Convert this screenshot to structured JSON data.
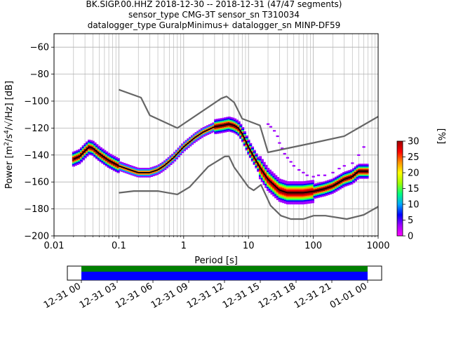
{
  "title_lines": [
    "BK.SIGP.00.HHZ   2018-12-30 -- 2018-12-31  (47/47 segments)",
    "sensor_type CMG-3T sensor_sn T310034",
    "datalogger_type GuralpMinimus+ datalogger_sn MINP-DF59"
  ],
  "chart_data": [
    {
      "type": "heatmap",
      "xlabel": "Period [s]",
      "ylabel": "Power [m²/s⁴/Hz] [dB]",
      "ylabel_parts": {
        "prefix": "Power [m",
        "sup1": "2",
        "mid": "/s",
        "sup2": "4",
        "suffix": "/Hz] [dB]"
      },
      "x_scale": "log",
      "xlim": [
        0.01,
        1000
      ],
      "ylim": [
        -200,
        -50
      ],
      "x_ticks": [
        0.01,
        0.1,
        1,
        10,
        100,
        1000
      ],
      "x_tick_labels": [
        "0.01",
        "0.1",
        "1",
        "10",
        "100",
        "1000"
      ],
      "y_ticks": [
        -200,
        -180,
        -160,
        -140,
        -120,
        -100,
        -80,
        -60
      ],
      "y_tick_labels": [
        "−200",
        "−180",
        "−160",
        "−140",
        "−120",
        "−100",
        "−80",
        "−60"
      ],
      "grid": true,
      "colorbar": {
        "label": "[%]",
        "range": [
          0,
          30
        ],
        "ticks": [
          0,
          5,
          10,
          15,
          20,
          25,
          30
        ],
        "tick_labels": [
          "0",
          "5",
          "10",
          "15",
          "20",
          "25",
          "30"
        ],
        "colors": [
          "#ff00ff",
          "#a000ff",
          "#0000ff",
          "#00a8ff",
          "#00ff80",
          "#a0ff00",
          "#ffff00",
          "#ff9000",
          "#ff0000",
          "#a00000"
        ]
      },
      "series": [
        {
          "role": "mean",
          "color": "#000000",
          "x": [
            0.02,
            0.025,
            0.03,
            0.035,
            0.04,
            0.05,
            0.07,
            0.1,
            0.15,
            0.2,
            0.3,
            0.4,
            0.5,
            0.7,
            1,
            1.5,
            2,
            3,
            4,
            5,
            6,
            7,
            8,
            10,
            15,
            20,
            30,
            40,
            50,
            70,
            100,
            150,
            200,
            300,
            400,
            500,
            700
          ],
          "y": [
            -143,
            -141,
            -137,
            -134,
            -135,
            -139,
            -144,
            -148,
            -151,
            -153,
            -153,
            -151,
            -148,
            -142,
            -134,
            -127,
            -123,
            -119,
            -118,
            -117,
            -118,
            -120,
            -124,
            -134,
            -149,
            -158,
            -166,
            -168,
            -168,
            -168,
            -167,
            -165,
            -163,
            -158,
            -156,
            -152,
            -152
          ]
        },
        {
          "role": "model-upper",
          "color": "#666666",
          "x": [
            0.1,
            0.22,
            0.3,
            0.8,
            3.8,
            4.6,
            6,
            8,
            15,
            20,
            100,
            300,
            1000
          ],
          "y": [
            -91.5,
            -97.4,
            -110.5,
            -120,
            -98,
            -96.5,
            -101,
            -113,
            -118,
            -138,
            -131,
            -126,
            -111.5
          ]
        },
        {
          "role": "model-lower",
          "color": "#666666",
          "x": [
            0.1,
            0.17,
            0.4,
            0.8,
            1.24,
            2.4,
            4.3,
            5,
            6,
            10,
            12,
            15.6,
            21.9,
            31.6,
            45,
            70,
            101,
            154,
            328,
            600,
            1000
          ],
          "y": [
            -168,
            -166.7,
            -166.7,
            -169.2,
            -163.7,
            -148.6,
            -141.1,
            -141,
            -149,
            -163.8,
            -166.2,
            -162.1,
            -177.5,
            -185,
            -187.5,
            -187.5,
            -185,
            -185,
            -187.5,
            -184.4,
            -178.3
          ]
        }
      ],
      "outliers": {
        "color": "#a000ff",
        "x": [
          20,
          22,
          25,
          28,
          30,
          33,
          36,
          40,
          45,
          50,
          60,
          70,
          80,
          100,
          120,
          150,
          200,
          250,
          300,
          400,
          500,
          600
        ],
        "y": [
          -117,
          -119,
          -122,
          -126,
          -131,
          -135,
          -139,
          -142,
          -145,
          -148,
          -151,
          -153,
          -155,
          -156,
          -155,
          -155,
          -153,
          -150,
          -148,
          -146,
          -140,
          -134
        ]
      }
    },
    {
      "type": "timeline",
      "x_tick_labels": [
        "12-31 00",
        "12-31 03",
        "12-31 06",
        "12-31 09",
        "12-31 12",
        "12-31 15",
        "12-31 18",
        "12-31 21",
        "01-01 00"
      ],
      "bar_colors": [
        "#008000",
        "#0000ff"
      ]
    }
  ]
}
